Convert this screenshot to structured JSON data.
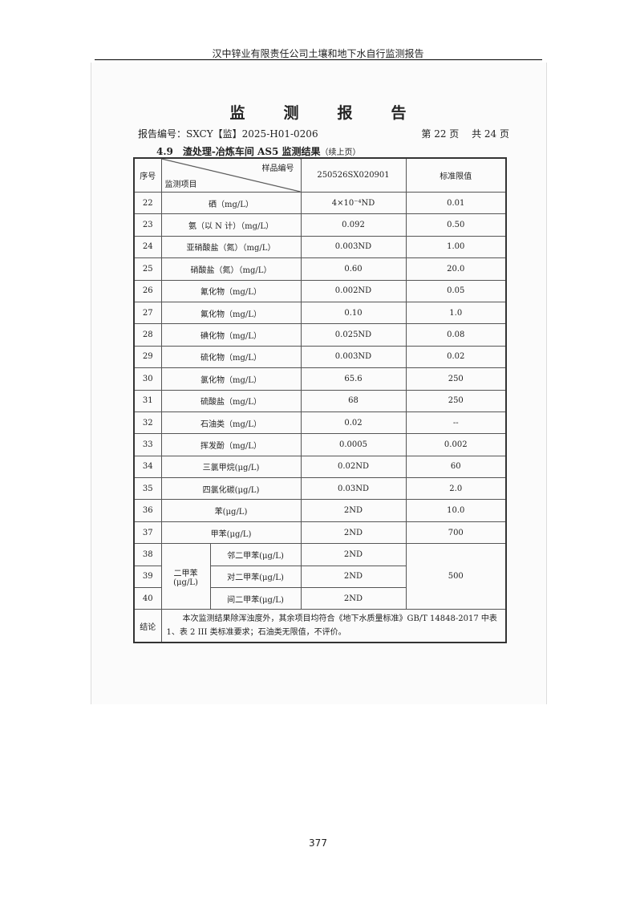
{
  "running_header": "汉中锌业有限责任公司土壤和地下水自行监测报告",
  "title": "监测报告",
  "report_no": "报告编号：SXCY【监】2025-H01-0206",
  "page_info": "第 22 页　 共 24 页",
  "section": "4.9　渣处理-冶炼车间 AS5 监测结果",
  "section_note": "（续上页）",
  "table": {
    "h_no": "序号",
    "h_sample": "样品编号",
    "h_item": "监测项目",
    "h_id": "250526SX020901",
    "h_std": "标准限值",
    "rows": [
      [
        "22",
        "硒（mg/L）",
        "4×10⁻⁴ND",
        "0.01"
      ],
      [
        "23",
        "氨（以 N 计）（mg/L）",
        "0.092",
        "0.50"
      ],
      [
        "24",
        "亚硝酸盐（氮）（mg/L）",
        "0.003ND",
        "1.00"
      ],
      [
        "25",
        "硝酸盐（氮）（mg/L）",
        "0.60",
        "20.0"
      ],
      [
        "26",
        "氰化物（mg/L）",
        "0.002ND",
        "0.05"
      ],
      [
        "27",
        "氟化物（mg/L）",
        "0.10",
        "1.0"
      ],
      [
        "28",
        "碘化物（mg/L）",
        "0.025ND",
        "0.08"
      ],
      [
        "29",
        "硫化物（mg/L）",
        "0.003ND",
        "0.02"
      ],
      [
        "30",
        "氯化物（mg/L）",
        "65.6",
        "250"
      ],
      [
        "31",
        "硫酸盐（mg/L）",
        "68",
        "250"
      ],
      [
        "32",
        "石油类（mg/L）",
        "0.02",
        "--"
      ],
      [
        "33",
        "挥发酚（mg/L）",
        "0.0005",
        "0.002"
      ],
      [
        "34",
        "三氯甲烷(μg/L)",
        "0.02ND",
        "60"
      ],
      [
        "35",
        "四氯化碳(μg/L)",
        "0.03ND",
        "2.0"
      ],
      [
        "36",
        "苯(μg/L)",
        "2ND",
        "10.0"
      ],
      [
        "37",
        "甲苯(μg/L)",
        "2ND",
        "700"
      ]
    ],
    "xylene_group": "二甲苯",
    "xylene_unit": "(μg/L)",
    "xylene_std": "500",
    "xylene_rows": [
      [
        "38",
        "邻二甲苯(μg/L)",
        "2ND"
      ],
      [
        "39",
        "对二甲苯(μg/L)",
        "2ND"
      ],
      [
        "40",
        "间二甲苯(μg/L)",
        "2ND"
      ]
    ],
    "concl_label": "结论",
    "concl_text": "本次监测结果除浑浊度外，其余项目均符合《地下水质量标准》GB/T 14848-2017 中表 1、表 2 III 类标准要求；石油类无限值，不评价。"
  },
  "page_number": "377"
}
